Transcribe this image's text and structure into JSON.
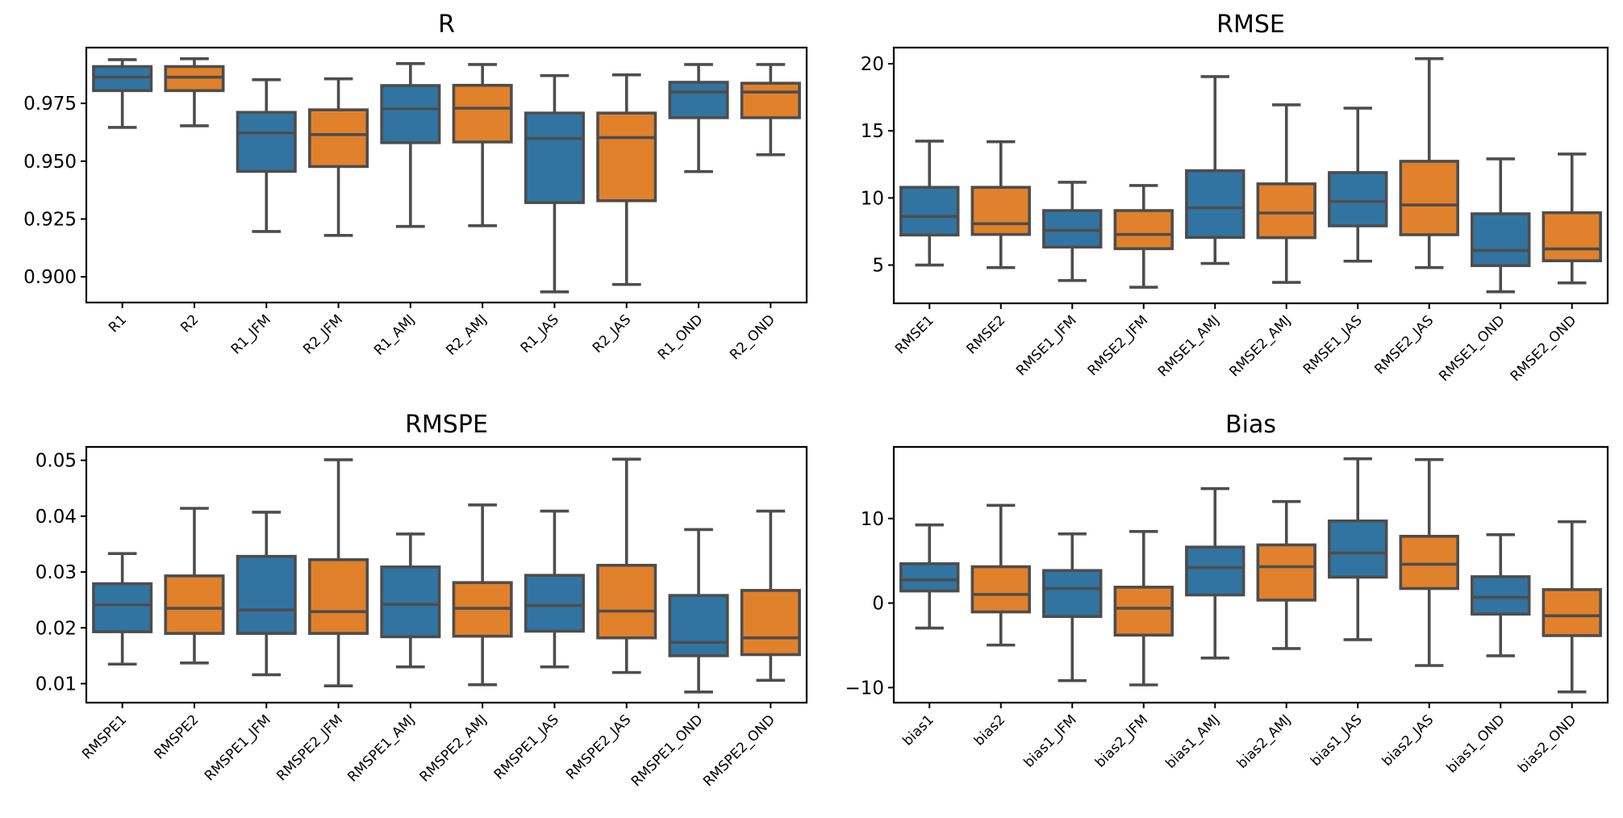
{
  "colors": {
    "series1": "#3274a1",
    "series2": "#e1812c",
    "lines": "#4d4d4d"
  },
  "chart_data": [
    {
      "type": "box",
      "title": "R",
      "xlabel": "",
      "ylabel": "",
      "ylim": [
        0.8889,
        0.9991
      ],
      "yticks": [
        0.9,
        0.925,
        0.95,
        0.975
      ],
      "ytick_labels": [
        "0.900",
        "0.925",
        "0.950",
        "0.975"
      ],
      "grid": false,
      "categories": [
        "R1",
        "R2",
        "R1_JFM",
        "R2_JFM",
        "R1_AMJ",
        "R2_AMJ",
        "R1_JAS",
        "R2_JAS",
        "R1_OND",
        "R2_OND"
      ],
      "series_index": [
        0,
        1,
        0,
        1,
        0,
        1,
        0,
        1,
        0,
        1
      ],
      "stats": [
        {
          "whislo": 0.9646,
          "q1": 0.9805,
          "med": 0.9863,
          "q3": 0.9909,
          "whishi": 0.9939
        },
        {
          "whislo": 0.9653,
          "q1": 0.9805,
          "med": 0.9863,
          "q3": 0.9909,
          "whishi": 0.9943
        },
        {
          "whislo": 0.9196,
          "q1": 0.9456,
          "med": 0.9622,
          "q3": 0.9711,
          "whishi": 0.9852
        },
        {
          "whislo": 0.9179,
          "q1": 0.9477,
          "med": 0.9615,
          "q3": 0.9722,
          "whishi": 0.9856
        },
        {
          "whislo": 0.9218,
          "q1": 0.958,
          "med": 0.9726,
          "q3": 0.9827,
          "whishi": 0.9922
        },
        {
          "whislo": 0.9221,
          "q1": 0.9583,
          "med": 0.9729,
          "q3": 0.9828,
          "whishi": 0.9918
        },
        {
          "whislo": 0.8935,
          "q1": 0.9321,
          "med": 0.9598,
          "q3": 0.9708,
          "whishi": 0.987
        },
        {
          "whislo": 0.8967,
          "q1": 0.9329,
          "med": 0.9602,
          "q3": 0.9708,
          "whishi": 0.9873
        },
        {
          "whislo": 0.9455,
          "q1": 0.9688,
          "med": 0.9799,
          "q3": 0.9841,
          "whishi": 0.9918
        },
        {
          "whislo": 0.9528,
          "q1": 0.9688,
          "med": 0.9799,
          "q3": 0.9837,
          "whishi": 0.9918
        }
      ]
    },
    {
      "type": "box",
      "title": "RMSE",
      "xlabel": "",
      "ylabel": "",
      "ylim": [
        2.15,
        21.2
      ],
      "yticks": [
        5,
        10,
        15,
        20
      ],
      "ytick_labels": [
        "5",
        "10",
        "15",
        "20"
      ],
      "grid": false,
      "categories": [
        "RMSE1",
        "RMSE2",
        "RMSE1_JFM",
        "RMSE2_JFM",
        "RMSE1_AMJ",
        "RMSE2_AMJ",
        "RMSE1_JAS",
        "RMSE2_JAS",
        "RMSE1_OND",
        "RMSE2_OND"
      ],
      "series_index": [
        0,
        1,
        0,
        1,
        0,
        1,
        0,
        1,
        0,
        1
      ],
      "stats": [
        {
          "whislo": 5.0,
          "q1": 7.24,
          "med": 8.62,
          "q3": 10.79,
          "whishi": 14.23
        },
        {
          "whislo": 4.81,
          "q1": 7.28,
          "med": 8.08,
          "q3": 10.79,
          "whishi": 14.19
        },
        {
          "whislo": 3.85,
          "q1": 6.34,
          "med": 7.58,
          "q3": 9.06,
          "whishi": 11.17
        },
        {
          "whislo": 3.35,
          "q1": 6.22,
          "med": 7.28,
          "q3": 9.06,
          "whishi": 10.93
        },
        {
          "whislo": 5.12,
          "q1": 7.06,
          "med": 9.26,
          "q3": 12.03,
          "whishi": 19.04
        },
        {
          "whislo": 3.71,
          "q1": 7.04,
          "med": 8.88,
          "q3": 11.05,
          "whishi": 16.94
        },
        {
          "whislo": 5.29,
          "q1": 7.92,
          "med": 9.74,
          "q3": 11.89,
          "whishi": 16.69
        },
        {
          "whislo": 4.81,
          "q1": 7.26,
          "med": 9.48,
          "q3": 12.73,
          "whishi": 20.38
        },
        {
          "whislo": 3.01,
          "q1": 4.96,
          "med": 6.08,
          "q3": 8.82,
          "whishi": 12.91
        },
        {
          "whislo": 3.67,
          "q1": 5.32,
          "med": 6.2,
          "q3": 8.9,
          "whishi": 13.27
        }
      ]
    },
    {
      "type": "box",
      "title": "RMSPE",
      "xlabel": "",
      "ylabel": "",
      "ylim": [
        0.0066,
        0.0524
      ],
      "yticks": [
        0.01,
        0.02,
        0.03,
        0.04,
        0.05
      ],
      "ytick_labels": [
        "0.01",
        "0.02",
        "0.03",
        "0.04",
        "0.05"
      ],
      "grid": false,
      "categories": [
        "RMSPE1",
        "RMSPE2",
        "RMSPE1_JFM",
        "RMSPE2_JFM",
        "RMSPE1_AMJ",
        "RMSPE2_AMJ",
        "RMSPE1_JAS",
        "RMSPE2_JAS",
        "RMSPE1_OND",
        "RMSPE2_OND"
      ],
      "series_index": [
        0,
        1,
        0,
        1,
        0,
        1,
        0,
        1,
        0,
        1
      ],
      "stats": [
        {
          "whislo": 0.0135,
          "q1": 0.0193,
          "med": 0.0241,
          "q3": 0.0279,
          "whishi": 0.0333
        },
        {
          "whislo": 0.0137,
          "q1": 0.019,
          "med": 0.0235,
          "q3": 0.0293,
          "whishi": 0.0414
        },
        {
          "whislo": 0.0116,
          "q1": 0.019,
          "med": 0.0232,
          "q3": 0.0328,
          "whishi": 0.0407
        },
        {
          "whislo": 0.0096,
          "q1": 0.019,
          "med": 0.0229,
          "q3": 0.0322,
          "whishi": 0.0501
        },
        {
          "whislo": 0.013,
          "q1": 0.0184,
          "med": 0.0242,
          "q3": 0.0309,
          "whishi": 0.0368
        },
        {
          "whislo": 0.0098,
          "q1": 0.0185,
          "med": 0.0235,
          "q3": 0.0281,
          "whishi": 0.042
        },
        {
          "whislo": 0.013,
          "q1": 0.0194,
          "med": 0.024,
          "q3": 0.0294,
          "whishi": 0.0409
        },
        {
          "whislo": 0.012,
          "q1": 0.0182,
          "med": 0.023,
          "q3": 0.0312,
          "whishi": 0.0502
        },
        {
          "whislo": 0.0085,
          "q1": 0.015,
          "med": 0.0174,
          "q3": 0.0258,
          "whishi": 0.0376
        },
        {
          "whislo": 0.0106,
          "q1": 0.0152,
          "med": 0.0182,
          "q3": 0.0267,
          "whishi": 0.0409
        }
      ]
    },
    {
      "type": "box",
      "title": "Bias",
      "xlabel": "",
      "ylabel": "",
      "ylim": [
        -11.78,
        18.47
      ],
      "yticks": [
        -10,
        0,
        10
      ],
      "ytick_labels": [
        "−10",
        "0",
        "10"
      ],
      "grid": false,
      "categories": [
        "bias1",
        "bias2",
        "bias1_JFM",
        "bias2_JFM",
        "bias1_AMJ",
        "bias2_AMJ",
        "bias1_JAS",
        "bias2_JAS",
        "bias1_OND",
        "bias2_OND"
      ],
      "series_index": [
        0,
        1,
        0,
        1,
        0,
        1,
        0,
        1,
        0,
        1
      ],
      "stats": [
        {
          "whislo": -2.96,
          "q1": 1.43,
          "med": 2.74,
          "q3": 4.65,
          "whishi": 9.24
        },
        {
          "whislo": -4.97,
          "q1": -1.05,
          "med": 1.02,
          "q3": 4.3,
          "whishi": 11.56
        },
        {
          "whislo": -9.17,
          "q1": -1.59,
          "med": 1.72,
          "q3": 3.85,
          "whishi": 8.18
        },
        {
          "whislo": -9.68,
          "q1": -3.79,
          "med": -0.61,
          "q3": 1.88,
          "whishi": 8.47
        },
        {
          "whislo": -6.5,
          "q1": 0.96,
          "med": 4.2,
          "q3": 6.62,
          "whishi": 13.54
        },
        {
          "whislo": -5.38,
          "q1": 0.35,
          "med": 4.3,
          "q3": 6.88,
          "whishi": 12.01
        },
        {
          "whislo": -4.33,
          "q1": 3.06,
          "med": 5.92,
          "q3": 9.71,
          "whishi": 17.07
        },
        {
          "whislo": -7.39,
          "q1": 1.72,
          "med": 4.59,
          "q3": 7.9,
          "whishi": 16.97
        },
        {
          "whislo": -6.24,
          "q1": -1.31,
          "med": 0.67,
          "q3": 3.12,
          "whishi": 8.09
        },
        {
          "whislo": -10.51,
          "q1": -3.85,
          "med": -1.5,
          "q3": 1.59,
          "whishi": 9.62
        }
      ]
    }
  ]
}
